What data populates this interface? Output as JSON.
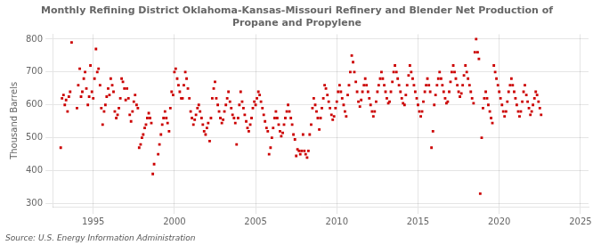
{
  "chart_data": {
    "type": "scatter",
    "title": "Monthly Refining District Oklahoma-Kansas-Missouri Refinery and Blender Net Production of\nPropane and Propylene",
    "ylabel": "Thousand Barrels",
    "annotations": [
      "Source: U.S. Energy Information Administration"
    ],
    "color": "#CC0000",
    "marker": "square",
    "grid": true,
    "xlim": [
      1992.5,
      2025.5
    ],
    "ylim": [
      290,
      815
    ],
    "xticks": [
      1995,
      2000,
      2005,
      2010,
      2015,
      2020,
      2025
    ],
    "yticks": [
      300,
      400,
      500,
      600,
      700,
      800
    ],
    "x": [
      1993.0,
      1993.08,
      1993.17,
      1993.25,
      1993.33,
      1993.42,
      1993.5,
      1993.58,
      1993.67,
      1994.0,
      1994.08,
      1994.17,
      1994.25,
      1994.33,
      1994.42,
      1994.5,
      1994.58,
      1994.67,
      1994.75,
      1994.83,
      1994.92,
      1995.0,
      1995.08,
      1995.17,
      1995.25,
      1995.33,
      1995.42,
      1995.5,
      1995.58,
      1995.67,
      1995.75,
      1995.83,
      1995.92,
      1996.0,
      1996.08,
      1996.17,
      1996.25,
      1996.33,
      1996.42,
      1996.5,
      1996.58,
      1996.67,
      1996.75,
      1996.83,
      1996.92,
      1997.0,
      1997.08,
      1997.17,
      1997.25,
      1997.33,
      1997.42,
      1997.5,
      1997.58,
      1997.67,
      1997.75,
      1997.83,
      1997.92,
      1998.0,
      1998.08,
      1998.17,
      1998.25,
      1998.33,
      1998.42,
      1998.5,
      1998.58,
      1998.67,
      1998.75,
      1999.0,
      1999.08,
      1999.17,
      1999.25,
      1999.33,
      1999.42,
      1999.5,
      1999.58,
      1999.67,
      1999.75,
      1999.83,
      1999.92,
      2000.0,
      2000.08,
      2000.17,
      2000.25,
      2000.33,
      2000.42,
      2000.5,
      2000.58,
      2000.67,
      2000.75,
      2000.83,
      2000.92,
      2001.0,
      2001.08,
      2001.17,
      2001.25,
      2001.33,
      2001.42,
      2001.5,
      2001.58,
      2001.67,
      2001.75,
      2001.83,
      2001.92,
      2002.0,
      2002.08,
      2002.17,
      2002.25,
      2002.33,
      2002.42,
      2002.5,
      2002.58,
      2002.67,
      2002.75,
      2002.83,
      2002.92,
      2003.0,
      2003.08,
      2003.17,
      2003.25,
      2003.33,
      2003.42,
      2003.5,
      2003.58,
      2003.67,
      2003.75,
      2003.83,
      2003.92,
      2004.0,
      2004.08,
      2004.17,
      2004.25,
      2004.33,
      2004.42,
      2004.5,
      2004.58,
      2004.67,
      2004.75,
      2004.83,
      2004.92,
      2005.0,
      2005.08,
      2005.17,
      2005.25,
      2005.33,
      2005.42,
      2005.5,
      2005.58,
      2005.67,
      2005.75,
      2005.83,
      2005.92,
      2006.0,
      2006.08,
      2006.17,
      2006.25,
      2006.33,
      2006.42,
      2006.5,
      2006.58,
      2006.67,
      2006.75,
      2006.83,
      2006.92,
      2007.0,
      2007.08,
      2007.17,
      2007.25,
      2007.33,
      2007.42,
      2007.5,
      2007.58,
      2007.67,
      2007.75,
      2007.83,
      2007.92,
      2008.0,
      2008.08,
      2008.17,
      2008.25,
      2008.33,
      2008.42,
      2008.5,
      2008.58,
      2008.67,
      2008.75,
      2008.83,
      2008.92,
      2009.0,
      2009.08,
      2009.17,
      2009.25,
      2009.33,
      2009.42,
      2009.5,
      2009.58,
      2009.67,
      2009.75,
      2009.83,
      2009.92,
      2010.0,
      2010.08,
      2010.17,
      2010.25,
      2010.33,
      2010.42,
      2010.5,
      2010.58,
      2010.67,
      2010.75,
      2010.83,
      2010.92,
      2011.0,
      2011.08,
      2011.17,
      2011.25,
      2011.33,
      2011.42,
      2011.5,
      2011.58,
      2011.67,
      2011.75,
      2011.83,
      2011.92,
      2012.0,
      2012.08,
      2012.17,
      2012.25,
      2012.33,
      2012.42,
      2012.5,
      2012.58,
      2012.67,
      2012.75,
      2012.83,
      2012.92,
      2013.0,
      2013.08,
      2013.17,
      2013.25,
      2013.33,
      2013.42,
      2013.5,
      2013.58,
      2013.67,
      2013.75,
      2013.83,
      2013.92,
      2014.0,
      2014.08,
      2014.17,
      2014.25,
      2014.33,
      2014.42,
      2014.5,
      2014.58,
      2014.67,
      2014.75,
      2014.83,
      2014.92,
      2015.0,
      2015.08,
      2015.17,
      2015.25,
      2015.33,
      2015.42,
      2015.5,
      2015.58,
      2015.67,
      2015.75,
      2015.83,
      2015.92,
      2016.0,
      2016.08,
      2016.17,
      2016.25,
      2016.33,
      2016.42,
      2016.5,
      2016.58,
      2016.67,
      2016.75,
      2016.83,
      2016.92,
      2017.0,
      2017.08,
      2017.17,
      2017.25,
      2017.33,
      2017.42,
      2017.5,
      2017.58,
      2017.67,
      2017.75,
      2017.83,
      2017.92,
      2018.0,
      2018.08,
      2018.17,
      2018.25,
      2018.33,
      2018.42,
      2018.5,
      2018.58,
      2018.67,
      2018.75,
      2018.83,
      2018.92,
      2019.0,
      2019.08,
      2019.17,
      2019.25,
      2019.33,
      2019.42,
      2019.5,
      2019.58,
      2019.67,
      2019.75,
      2019.83,
      2019.92,
      2020.0,
      2020.08,
      2020.17,
      2020.25,
      2020.33,
      2020.42,
      2020.5,
      2020.58,
      2020.67,
      2020.75,
      2020.83,
      2020.92,
      2021.0,
      2021.08,
      2021.17,
      2021.25,
      2021.33,
      2021.42,
      2021.5,
      2021.58,
      2021.67,
      2021.75,
      2021.83,
      2021.92,
      2022.0,
      2022.08,
      2022.17,
      2022.25,
      2022.33,
      2022.42,
      2022.5,
      2022.58
    ],
    "values": [
      470,
      620,
      630,
      600,
      615,
      580,
      625,
      640,
      790,
      590,
      660,
      710,
      625,
      640,
      680,
      700,
      650,
      600,
      625,
      720,
      640,
      620,
      680,
      770,
      700,
      710,
      660,
      590,
      540,
      580,
      600,
      625,
      650,
      630,
      680,
      660,
      640,
      580,
      560,
      570,
      590,
      620,
      680,
      670,
      650,
      615,
      650,
      620,
      570,
      550,
      580,
      610,
      630,
      600,
      590,
      470,
      480,
      500,
      510,
      530,
      540,
      560,
      575,
      560,
      545,
      390,
      420,
      450,
      480,
      510,
      540,
      560,
      580,
      560,
      545,
      520,
      590,
      640,
      630,
      700,
      710,
      680,
      660,
      640,
      620,
      620,
      660,
      700,
      680,
      650,
      620,
      580,
      560,
      540,
      555,
      570,
      590,
      600,
      580,
      560,
      540,
      520,
      510,
      530,
      545,
      490,
      560,
      620,
      650,
      670,
      620,
      600,
      580,
      560,
      545,
      555,
      580,
      600,
      620,
      640,
      610,
      590,
      570,
      560,
      545,
      480,
      560,
      600,
      640,
      610,
      590,
      570,
      550,
      530,
      520,
      540,
      560,
      590,
      610,
      600,
      620,
      640,
      630,
      610,
      590,
      570,
      550,
      530,
      520,
      450,
      470,
      500,
      530,
      560,
      580,
      560,
      540,
      520,
      505,
      515,
      540,
      560,
      580,
      600,
      580,
      560,
      540,
      510,
      495,
      445,
      465,
      460,
      450,
      460,
      510,
      460,
      450,
      440,
      460,
      510,
      540,
      590,
      620,
      600,
      580,
      560,
      525,
      560,
      590,
      620,
      660,
      650,
      630,
      610,
      590,
      570,
      555,
      565,
      590,
      610,
      640,
      660,
      640,
      620,
      600,
      580,
      565,
      630,
      660,
      700,
      750,
      730,
      700,
      670,
      640,
      610,
      595,
      615,
      640,
      660,
      680,
      660,
      640,
      620,
      600,
      580,
      565,
      580,
      610,
      640,
      660,
      680,
      700,
      680,
      660,
      640,
      620,
      605,
      610,
      640,
      670,
      700,
      720,
      700,
      680,
      660,
      640,
      620,
      605,
      600,
      630,
      660,
      690,
      720,
      700,
      680,
      660,
      640,
      620,
      600,
      580,
      565,
      580,
      610,
      640,
      660,
      680,
      660,
      640,
      470,
      520,
      600,
      630,
      660,
      680,
      700,
      680,
      660,
      640,
      620,
      605,
      610,
      640,
      670,
      700,
      720,
      700,
      680,
      660,
      640,
      625,
      635,
      660,
      690,
      720,
      700,
      680,
      660,
      640,
      620,
      605,
      760,
      800,
      760,
      740,
      330,
      500,
      590,
      620,
      640,
      620,
      600,
      580,
      560,
      545,
      720,
      700,
      680,
      660,
      640,
      620,
      600,
      580,
      565,
      580,
      610,
      640,
      660,
      680,
      660,
      640,
      620,
      600,
      580,
      565,
      580,
      610,
      640,
      660,
      630,
      610,
      590,
      570,
      580,
      600,
      620,
      640,
      630,
      610,
      590,
      570
    ]
  }
}
